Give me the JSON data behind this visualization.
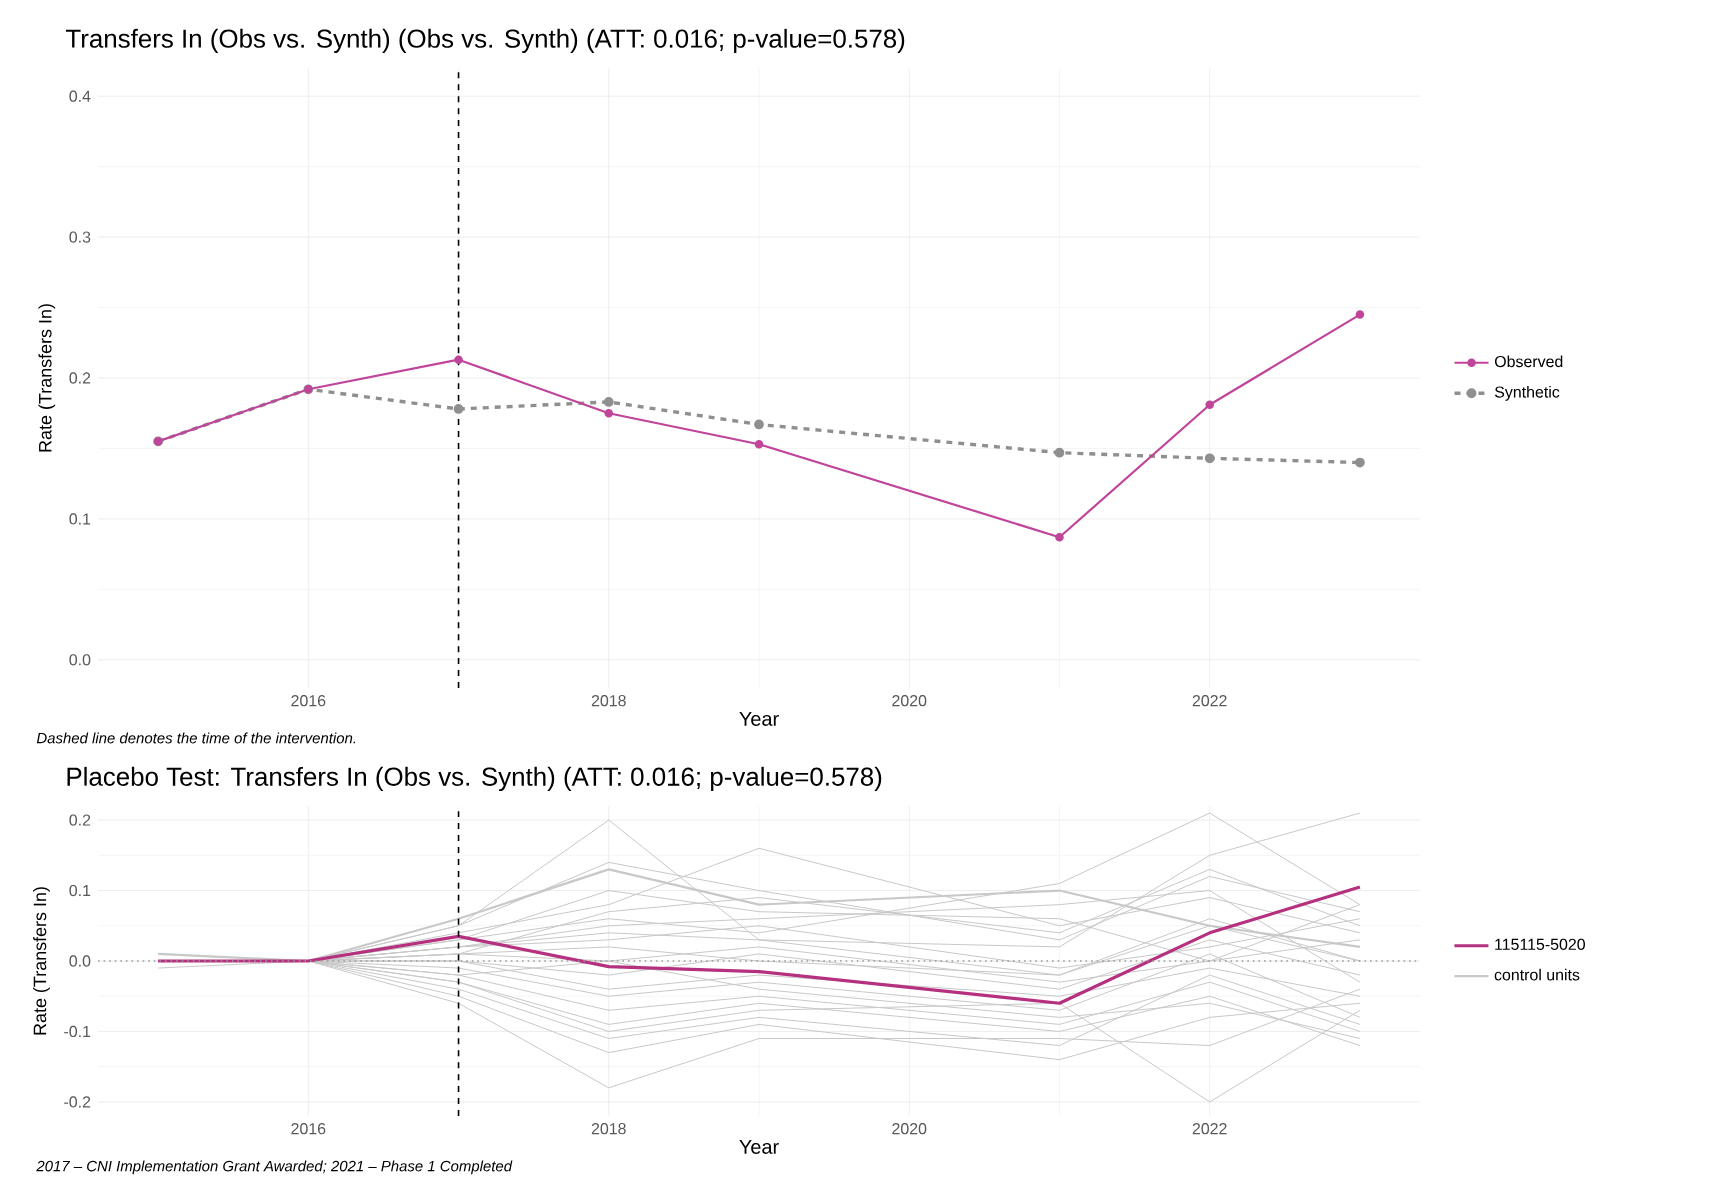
{
  "chart_data": [
    {
      "type": "line",
      "title": "Transfers In (Obs vs. Synth) (Obs vs. Synth) (ATT: 0.016; p-value=0.578)",
      "xlabel": "Year",
      "ylabel": "Rate (Transfers In)",
      "x": [
        2015,
        2016,
        2017,
        2018,
        2019,
        2021,
        2022,
        2023
      ],
      "series": [
        {
          "name": "Observed",
          "color": "#c0459a",
          "values": [
            0.155,
            0.192,
            0.213,
            0.175,
            0.153,
            0.087,
            0.181,
            0.245
          ],
          "line_style": "solid"
        },
        {
          "name": "Synthetic",
          "color": "#8f8f8f",
          "values": [
            0.155,
            0.192,
            0.178,
            0.183,
            0.167,
            0.147,
            0.143,
            0.14
          ],
          "line_style": "dashed"
        }
      ],
      "xlim": [
        2014.6,
        2023.4
      ],
      "xticks": [
        2016,
        2018,
        2020,
        2022
      ],
      "ylim": [
        -0.02,
        0.42
      ],
      "yticks": [
        {
          "value": 0,
          "label": "0.0"
        },
        0.1,
        0.2,
        0.3,
        0.4
      ],
      "ref_lines": [
        {
          "axis": "x",
          "value": 2017,
          "color": "#000000",
          "line_style": "dashed"
        }
      ],
      "annotations": [
        "Dashed line denotes the time of the intervention."
      ],
      "legend": "right",
      "grid": true,
      "marker": "circle"
    },
    {
      "type": "line",
      "title": "Placebo Test: Transfers In (Obs vs. Synth) (ATT: 0.016; p-value=0.578)",
      "xlabel": "Year",
      "ylabel": "Rate (Transfers In)",
      "x": [
        2015,
        2016,
        2017,
        2018,
        2019,
        2021,
        2022,
        2023
      ],
      "series": [
        {
          "name": "115115-5020",
          "color": "#b5307f",
          "values": [
            0.0,
            0.0,
            0.035,
            -0.008,
            -0.015,
            -0.06,
            0.04,
            0.105
          ]
        },
        {
          "name": "control units",
          "color": "#c8c8c8",
          "values": [
            0.01,
            0,
            0.06,
            0.13,
            0.08,
            0.1,
            0.05,
            0.02
          ]
        },
        {
          "color": "#c8c8c8",
          "values": [
            -0.01,
            0,
            0.05,
            0.14,
            0.1,
            0.03,
            0.12,
            0.07
          ]
        },
        {
          "color": "#c8c8c8",
          "values": [
            0,
            0,
            0.04,
            0.08,
            0.16,
            0.05,
            0.09,
            0.04
          ]
        },
        {
          "color": "#c8c8c8",
          "values": [
            0,
            0,
            0.03,
            0.06,
            0.04,
            0.11,
            0.21,
            0.08
          ]
        },
        {
          "color": "#c8c8c8",
          "values": [
            0,
            0,
            0.02,
            0.04,
            0.03,
            0.02,
            0.15,
            0.21
          ]
        },
        {
          "color": "#c8c8c8",
          "values": [
            0,
            0,
            0.02,
            0.03,
            0.05,
            -0.01,
            0.02,
            0.06
          ]
        },
        {
          "color": "#c8c8c8",
          "values": [
            0,
            0,
            0.01,
            0.02,
            0.0,
            -0.02,
            0.06,
            0.0
          ]
        },
        {
          "color": "#c8c8c8",
          "values": [
            0,
            0,
            0.01,
            0.0,
            0.02,
            -0.03,
            0.0,
            0.03
          ]
        },
        {
          "color": "#c8c8c8",
          "values": [
            0,
            0,
            0.0,
            -0.02,
            0.01,
            -0.04,
            0.03,
            -0.02
          ]
        },
        {
          "color": "#c8c8c8",
          "values": [
            0,
            0,
            0.0,
            -0.04,
            -0.02,
            -0.05,
            -0.01,
            -0.05
          ]
        },
        {
          "color": "#c8c8c8",
          "values": [
            0,
            0,
            -0.01,
            -0.05,
            -0.03,
            -0.07,
            0.01,
            -0.08
          ]
        },
        {
          "color": "#c8c8c8",
          "values": [
            0,
            0,
            -0.02,
            -0.07,
            -0.05,
            -0.09,
            -0.03,
            -0.1
          ]
        },
        {
          "color": "#c8c8c8",
          "values": [
            0,
            0,
            -0.03,
            -0.09,
            -0.06,
            -0.1,
            -0.05,
            -0.12
          ]
        },
        {
          "color": "#c8c8c8",
          "values": [
            0,
            0,
            -0.04,
            -0.11,
            -0.08,
            -0.12,
            -0.02,
            -0.09
          ]
        },
        {
          "color": "#c8c8c8",
          "values": [
            0,
            0,
            -0.05,
            -0.13,
            -0.09,
            -0.14,
            -0.08,
            -0.06
          ]
        },
        {
          "color": "#c8c8c8",
          "values": [
            0,
            0,
            -0.06,
            -0.18,
            -0.11,
            -0.11,
            -0.12,
            -0.04
          ]
        },
        {
          "color": "#c8c8c8",
          "values": [
            0,
            0,
            0.03,
            0.1,
            0.07,
            0.06,
            0.0,
            0.08
          ]
        },
        {
          "color": "#c8c8c8",
          "values": [
            0,
            0,
            0.02,
            0.05,
            0.06,
            0.08,
            0.1,
            -0.03
          ]
        },
        {
          "color": "#c8c8c8",
          "values": [
            0,
            0,
            -0.02,
            0.0,
            -0.04,
            -0.08,
            -0.06,
            -0.11
          ]
        },
        {
          "color": "#c8c8c8",
          "values": [
            0,
            0,
            0.05,
            0.2,
            0.03,
            -0.02,
            0.05,
            0.0
          ]
        },
        {
          "color": "#c8c8c8",
          "values": [
            0,
            0,
            -0.03,
            -0.1,
            -0.07,
            -0.06,
            -0.2,
            -0.07
          ]
        },
        {
          "color": "#c8c8c8",
          "values": [
            0,
            0,
            0.01,
            0.07,
            0.09,
            0.04,
            0.13,
            0.05
          ]
        }
      ],
      "xlim": [
        2014.6,
        2023.4
      ],
      "xticks": [
        2016,
        2018,
        2020,
        2022
      ],
      "ylim": [
        -0.22,
        0.22
      ],
      "yticks": [
        -0.2,
        -0.1,
        {
          "value": 0,
          "label": "0.0"
        },
        0.1,
        0.2
      ],
      "ref_lines": [
        {
          "axis": "x",
          "value": 2017,
          "color": "#000000",
          "line_style": "dashed"
        },
        {
          "axis": "y",
          "value": 0,
          "color": "#999999",
          "line_style": "dotted"
        }
      ],
      "annotations": [
        "2017 – CNI Implementation Grant Awarded; 2021 – Phase 1 Completed"
      ],
      "legend": "right",
      "grid": true,
      "marker": "none"
    }
  ]
}
